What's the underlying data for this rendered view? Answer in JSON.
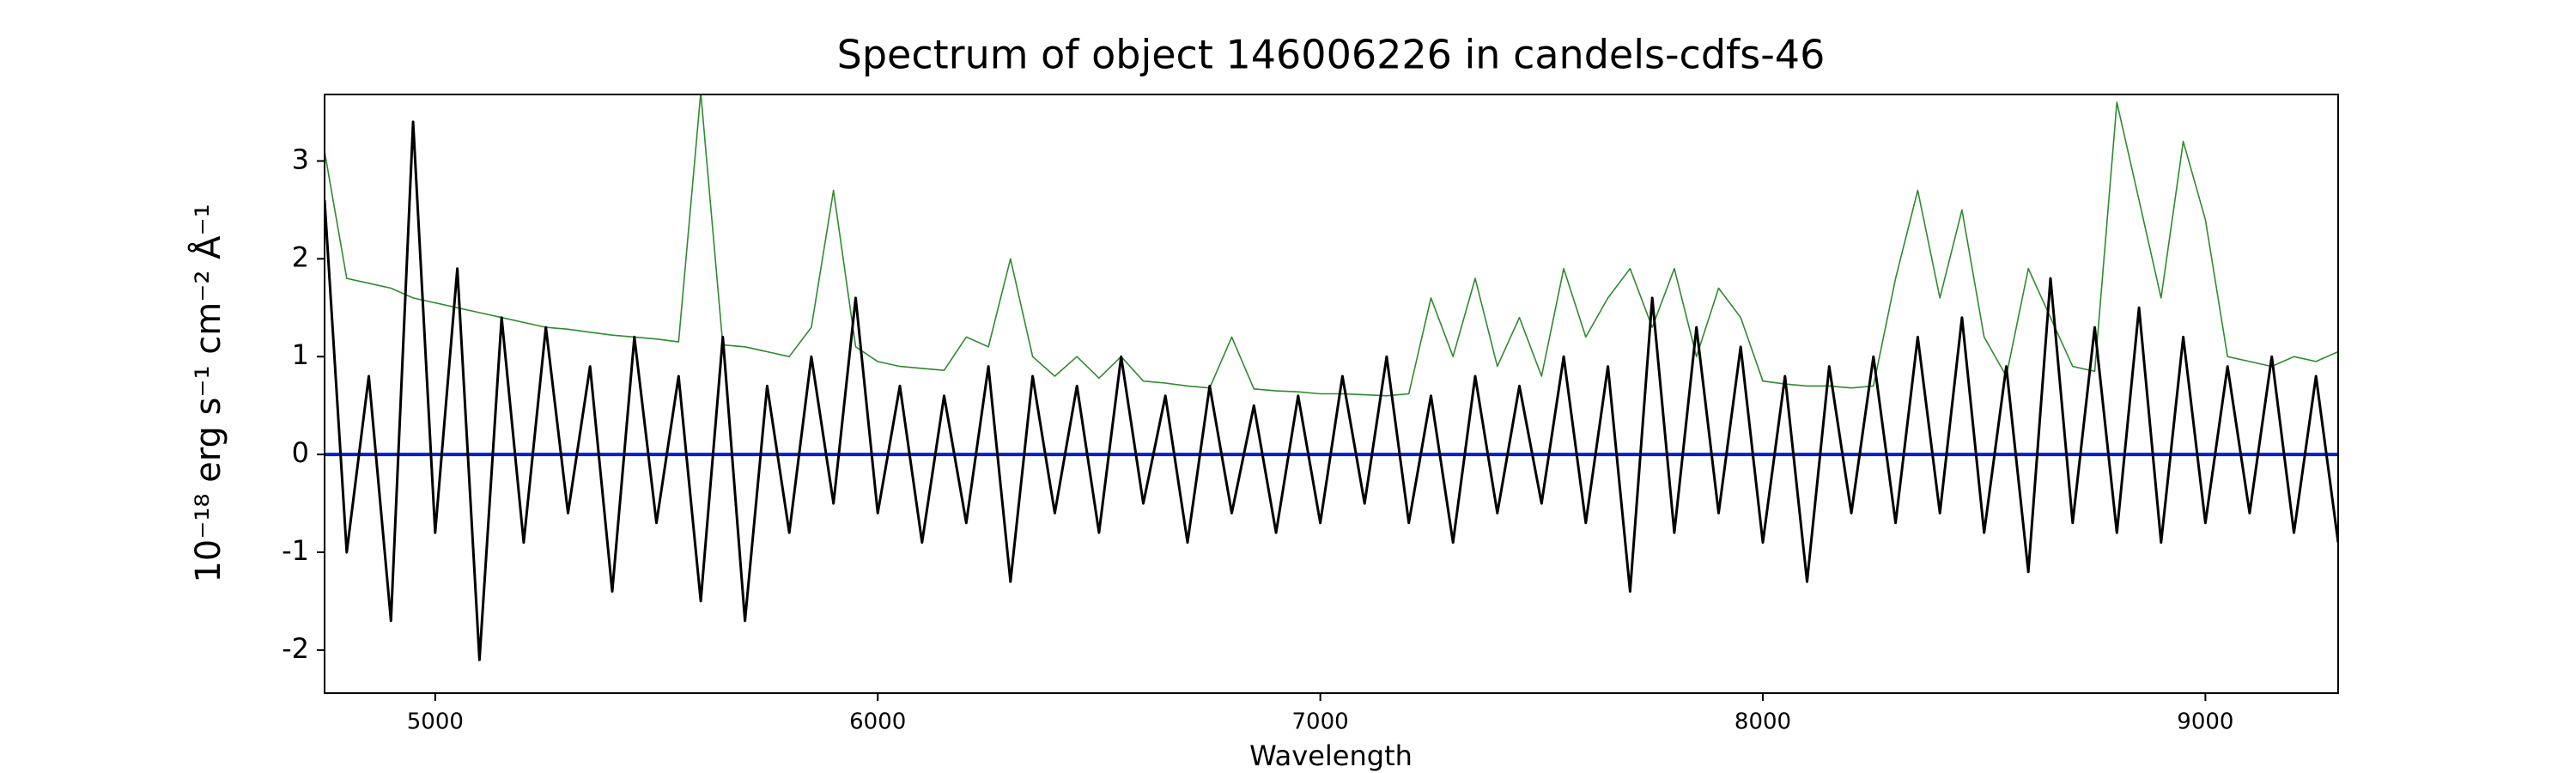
{
  "chart_data": {
    "type": "line",
    "title": "Spectrum of object 146006226 in candels-cdfs-46",
    "x_label": "Wavelength",
    "y_label": "10⁻¹⁸ erg s⁻¹ cm⁻² Å⁻¹",
    "x": [
      4750,
      4800,
      4850,
      4900,
      4950,
      5000,
      5050,
      5100,
      5150,
      5200,
      5250,
      5300,
      5350,
      5400,
      5450,
      5500,
      5550,
      5600,
      5650,
      5700,
      5750,
      5800,
      5850,
      5900,
      5950,
      6000,
      6050,
      6100,
      6150,
      6200,
      6250,
      6300,
      6350,
      6400,
      6450,
      6500,
      6550,
      6600,
      6650,
      6700,
      6750,
      6800,
      6850,
      6900,
      6950,
      7000,
      7050,
      7100,
      7150,
      7200,
      7250,
      7300,
      7350,
      7400,
      7450,
      7500,
      7550,
      7600,
      7650,
      7700,
      7750,
      7800,
      7850,
      7900,
      7950,
      8000,
      8050,
      8100,
      8150,
      8200,
      8250,
      8300,
      8350,
      8400,
      8450,
      8500,
      8550,
      8600,
      8650,
      8700,
      8750,
      8800,
      8850,
      8900,
      8950,
      9000,
      9050,
      9100,
      9150,
      9200,
      9250,
      9300
    ],
    "series": [
      {
        "color": "#2e8b2e",
        "values": [
          3.1,
          1.8,
          1.75,
          1.7,
          1.6,
          1.55,
          1.5,
          1.45,
          1.4,
          1.35,
          1.3,
          1.28,
          1.25,
          1.22,
          1.2,
          1.18,
          1.15,
          3.7,
          1.12,
          1.1,
          1.05,
          1.0,
          1.3,
          2.7,
          1.1,
          0.95,
          0.9,
          0.88,
          0.86,
          1.2,
          1.1,
          2.0,
          1.0,
          0.8,
          1.0,
          0.78,
          1.0,
          0.75,
          0.73,
          0.7,
          0.68,
          1.2,
          0.67,
          0.65,
          0.64,
          0.62,
          0.62,
          0.61,
          0.6,
          0.62,
          1.6,
          1.0,
          1.8,
          0.9,
          1.4,
          0.8,
          1.9,
          1.2,
          1.6,
          1.9,
          1.3,
          1.9,
          1.0,
          1.7,
          1.4,
          0.75,
          0.72,
          0.7,
          0.7,
          0.68,
          0.7,
          1.8,
          2.7,
          1.6,
          2.5,
          1.2,
          0.8,
          1.9,
          1.4,
          0.9,
          0.85,
          3.6,
          2.6,
          1.6,
          3.2,
          2.4,
          1.0,
          0.95,
          0.9,
          1.0,
          0.95,
          1.05
        ]
      },
      {
        "color": "#0a1fc8",
        "values": [
          0,
          0,
          0,
          0,
          0,
          0,
          0,
          0,
          0,
          0,
          0,
          0,
          0,
          0,
          0,
          0,
          0,
          0,
          0,
          0,
          0,
          0,
          0,
          0,
          0,
          0,
          0,
          0,
          0,
          0,
          0,
          0,
          0,
          0,
          0,
          0,
          0,
          0,
          0,
          0,
          0,
          0,
          0,
          0,
          0,
          0,
          0,
          0,
          0,
          0,
          0,
          0,
          0,
          0,
          0,
          0,
          0,
          0,
          0,
          0,
          0,
          0,
          0,
          0,
          0,
          0,
          0,
          0,
          0,
          0,
          0,
          0,
          0,
          0,
          0,
          0,
          0,
          0,
          0,
          0,
          0,
          0,
          0,
          0,
          0,
          0,
          0,
          0,
          0,
          0,
          0,
          0
        ]
      },
      {
        "color": "#000000",
        "values": [
          2.6,
          -1.0,
          0.8,
          -1.7,
          3.4,
          -0.8,
          1.9,
          -2.1,
          1.4,
          -0.9,
          1.3,
          -0.6,
          0.9,
          -1.4,
          1.2,
          -0.7,
          0.8,
          -1.5,
          1.2,
          -1.7,
          0.7,
          -0.8,
          1.0,
          -0.5,
          1.6,
          -0.6,
          0.7,
          -0.9,
          0.6,
          -0.7,
          0.9,
          -1.3,
          0.8,
          -0.6,
          0.7,
          -0.8,
          1.0,
          -0.5,
          0.6,
          -0.9,
          0.7,
          -0.6,
          0.5,
          -0.8,
          0.6,
          -0.7,
          0.8,
          -0.5,
          1.0,
          -0.7,
          0.6,
          -0.9,
          0.8,
          -0.6,
          0.7,
          -0.5,
          1.0,
          -0.7,
          0.9,
          -1.4,
          1.6,
          -0.8,
          1.3,
          -0.6,
          1.1,
          -0.9,
          0.8,
          -1.3,
          0.9,
          -0.6,
          1.0,
          -0.7,
          1.2,
          -0.6,
          1.4,
          -0.8,
          0.9,
          -1.2,
          1.8,
          -0.7,
          1.3,
          -0.8,
          1.5,
          -0.9,
          1.2,
          -0.7,
          0.9,
          -0.6,
          1.0,
          -0.8,
          0.8,
          -0.9
        ]
      }
    ],
    "xlim": [
      4750,
      9300
    ],
    "ylim": [
      -2.44,
      3.68
    ],
    "xticks": [
      5000,
      6000,
      7000,
      8000,
      9000
    ],
    "yticks": [
      -2,
      -1,
      0,
      1,
      2,
      3
    ]
  }
}
